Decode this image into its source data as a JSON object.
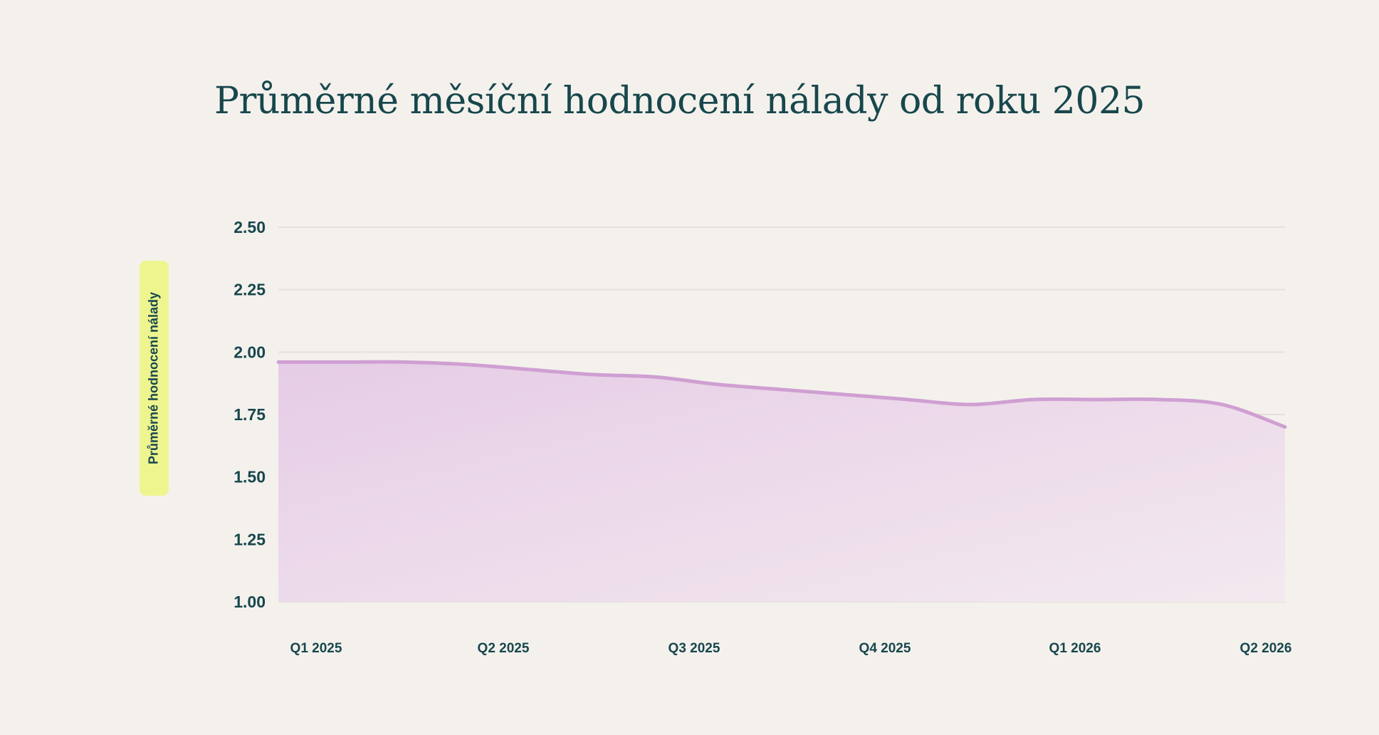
{
  "chart_data": {
    "type": "area",
    "title": "Průměrné měsíční hodnocení nálady od roku 2025",
    "ylabel": "Průměrné hodnocení nálady",
    "xlabel": "",
    "ylim": [
      1.0,
      2.5
    ],
    "yticks": [
      "2.50",
      "2.25",
      "2.00",
      "1.75",
      "1.50",
      "1.25",
      "1.00"
    ],
    "xticks": [
      "Q1 2025",
      "Q2 2025",
      "Q3 2025",
      "Q4 2025",
      "Q1 2026",
      "Q2 2026"
    ],
    "grid": true,
    "line_color": "#cf9fd2",
    "fill_color_top": "#e6cce6",
    "fill_color_bottom": "#f3e9ef",
    "series": [
      {
        "x": [
          "2025-01",
          "2025-02",
          "2025-03",
          "2025-04",
          "2025-05",
          "2025-06",
          "2025-07",
          "2025-08",
          "2025-09",
          "2025-10",
          "2025-11",
          "2025-12",
          "2026-01",
          "2026-02",
          "2026-03",
          "2026-04",
          "2026-05"
        ],
        "values": [
          1.96,
          1.96,
          1.96,
          1.95,
          1.93,
          1.91,
          1.9,
          1.87,
          1.85,
          1.83,
          1.81,
          1.79,
          1.81,
          1.81,
          1.81,
          1.79,
          1.7
        ]
      }
    ]
  }
}
